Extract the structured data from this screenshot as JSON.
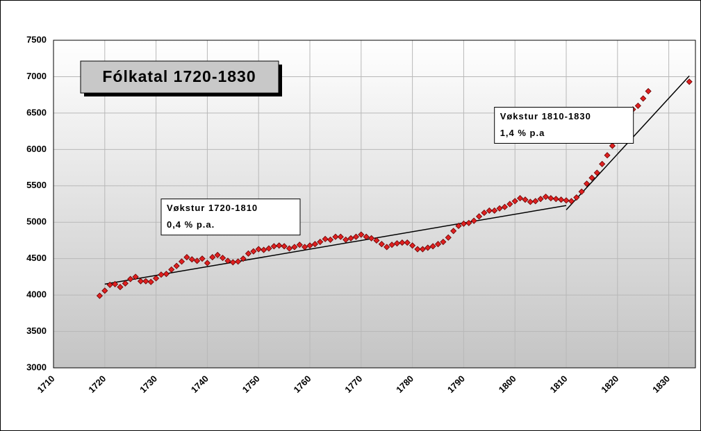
{
  "chart_data": {
    "type": "scatter",
    "title": "Fólkatal 1720-1830",
    "x": [
      1719,
      1720,
      1721,
      1722,
      1723,
      1724,
      1725,
      1726,
      1727,
      1728,
      1729,
      1730,
      1731,
      1732,
      1733,
      1734,
      1735,
      1736,
      1737,
      1738,
      1739,
      1740,
      1741,
      1742,
      1743,
      1744,
      1745,
      1746,
      1747,
      1748,
      1749,
      1750,
      1751,
      1752,
      1753,
      1754,
      1755,
      1756,
      1757,
      1758,
      1759,
      1760,
      1761,
      1762,
      1763,
      1764,
      1765,
      1766,
      1767,
      1768,
      1769,
      1770,
      1771,
      1772,
      1773,
      1774,
      1775,
      1776,
      1777,
      1778,
      1779,
      1780,
      1781,
      1782,
      1783,
      1784,
      1785,
      1786,
      1787,
      1788,
      1789,
      1790,
      1791,
      1792,
      1793,
      1794,
      1795,
      1796,
      1797,
      1798,
      1799,
      1800,
      1801,
      1802,
      1803,
      1804,
      1805,
      1806,
      1807,
      1808,
      1809,
      1810,
      1811,
      1812,
      1813,
      1814,
      1815,
      1816,
      1817,
      1818,
      1819,
      1820,
      1821,
      1822,
      1823,
      1824,
      1825,
      1826,
      1834
    ],
    "values": [
      3990,
      4060,
      4140,
      4150,
      4110,
      4160,
      4220,
      4250,
      4190,
      4190,
      4180,
      4230,
      4280,
      4290,
      4350,
      4400,
      4460,
      4520,
      4490,
      4470,
      4500,
      4440,
      4520,
      4550,
      4510,
      4470,
      4450,
      4460,
      4500,
      4570,
      4600,
      4630,
      4620,
      4640,
      4670,
      4680,
      4670,
      4640,
      4660,
      4690,
      4660,
      4680,
      4700,
      4730,
      4770,
      4760,
      4800,
      4800,
      4760,
      4780,
      4800,
      4830,
      4800,
      4780,
      4750,
      4700,
      4660,
      4690,
      4710,
      4720,
      4720,
      4680,
      4630,
      4630,
      4650,
      4670,
      4700,
      4730,
      4790,
      4880,
      4950,
      4980,
      4990,
      5020,
      5080,
      5130,
      5160,
      5160,
      5190,
      5210,
      5250,
      5290,
      5330,
      5310,
      5280,
      5290,
      5320,
      5350,
      5330,
      5320,
      5310,
      5300,
      5290,
      5340,
      5420,
      5530,
      5610,
      5680,
      5800,
      5920,
      6050,
      6200,
      6320,
      6450,
      6550,
      6600,
      6700,
      6800,
      6930
    ],
    "color": "#e02020",
    "trend_lines": [
      {
        "x": [
          1720,
          1810
        ],
        "values": [
          4150,
          5230
        ]
      },
      {
        "x": [
          1810,
          1834
        ],
        "values": [
          5170,
          7010
        ]
      }
    ],
    "annotations": [
      {
        "lines": [
          "Vøkstur 1720-1810",
          "0,4 % p.a."
        ],
        "x": 1731,
        "y": 5320
      },
      {
        "lines": [
          "Vøkstur 1810-1830",
          "1,4 % p.a"
        ],
        "x": 1796,
        "y": 6580
      }
    ],
    "xlim": [
      1710,
      1835.2
    ],
    "xticks": [
      1710,
      1720,
      1730,
      1740,
      1750,
      1760,
      1770,
      1780,
      1790,
      1800,
      1810,
      1820,
      1830
    ],
    "ylim": [
      3000,
      7500
    ],
    "yticks": [
      3000,
      3500,
      4000,
      4500,
      5000,
      5500,
      6000,
      6500,
      7000,
      7500
    ],
    "grid": true
  }
}
